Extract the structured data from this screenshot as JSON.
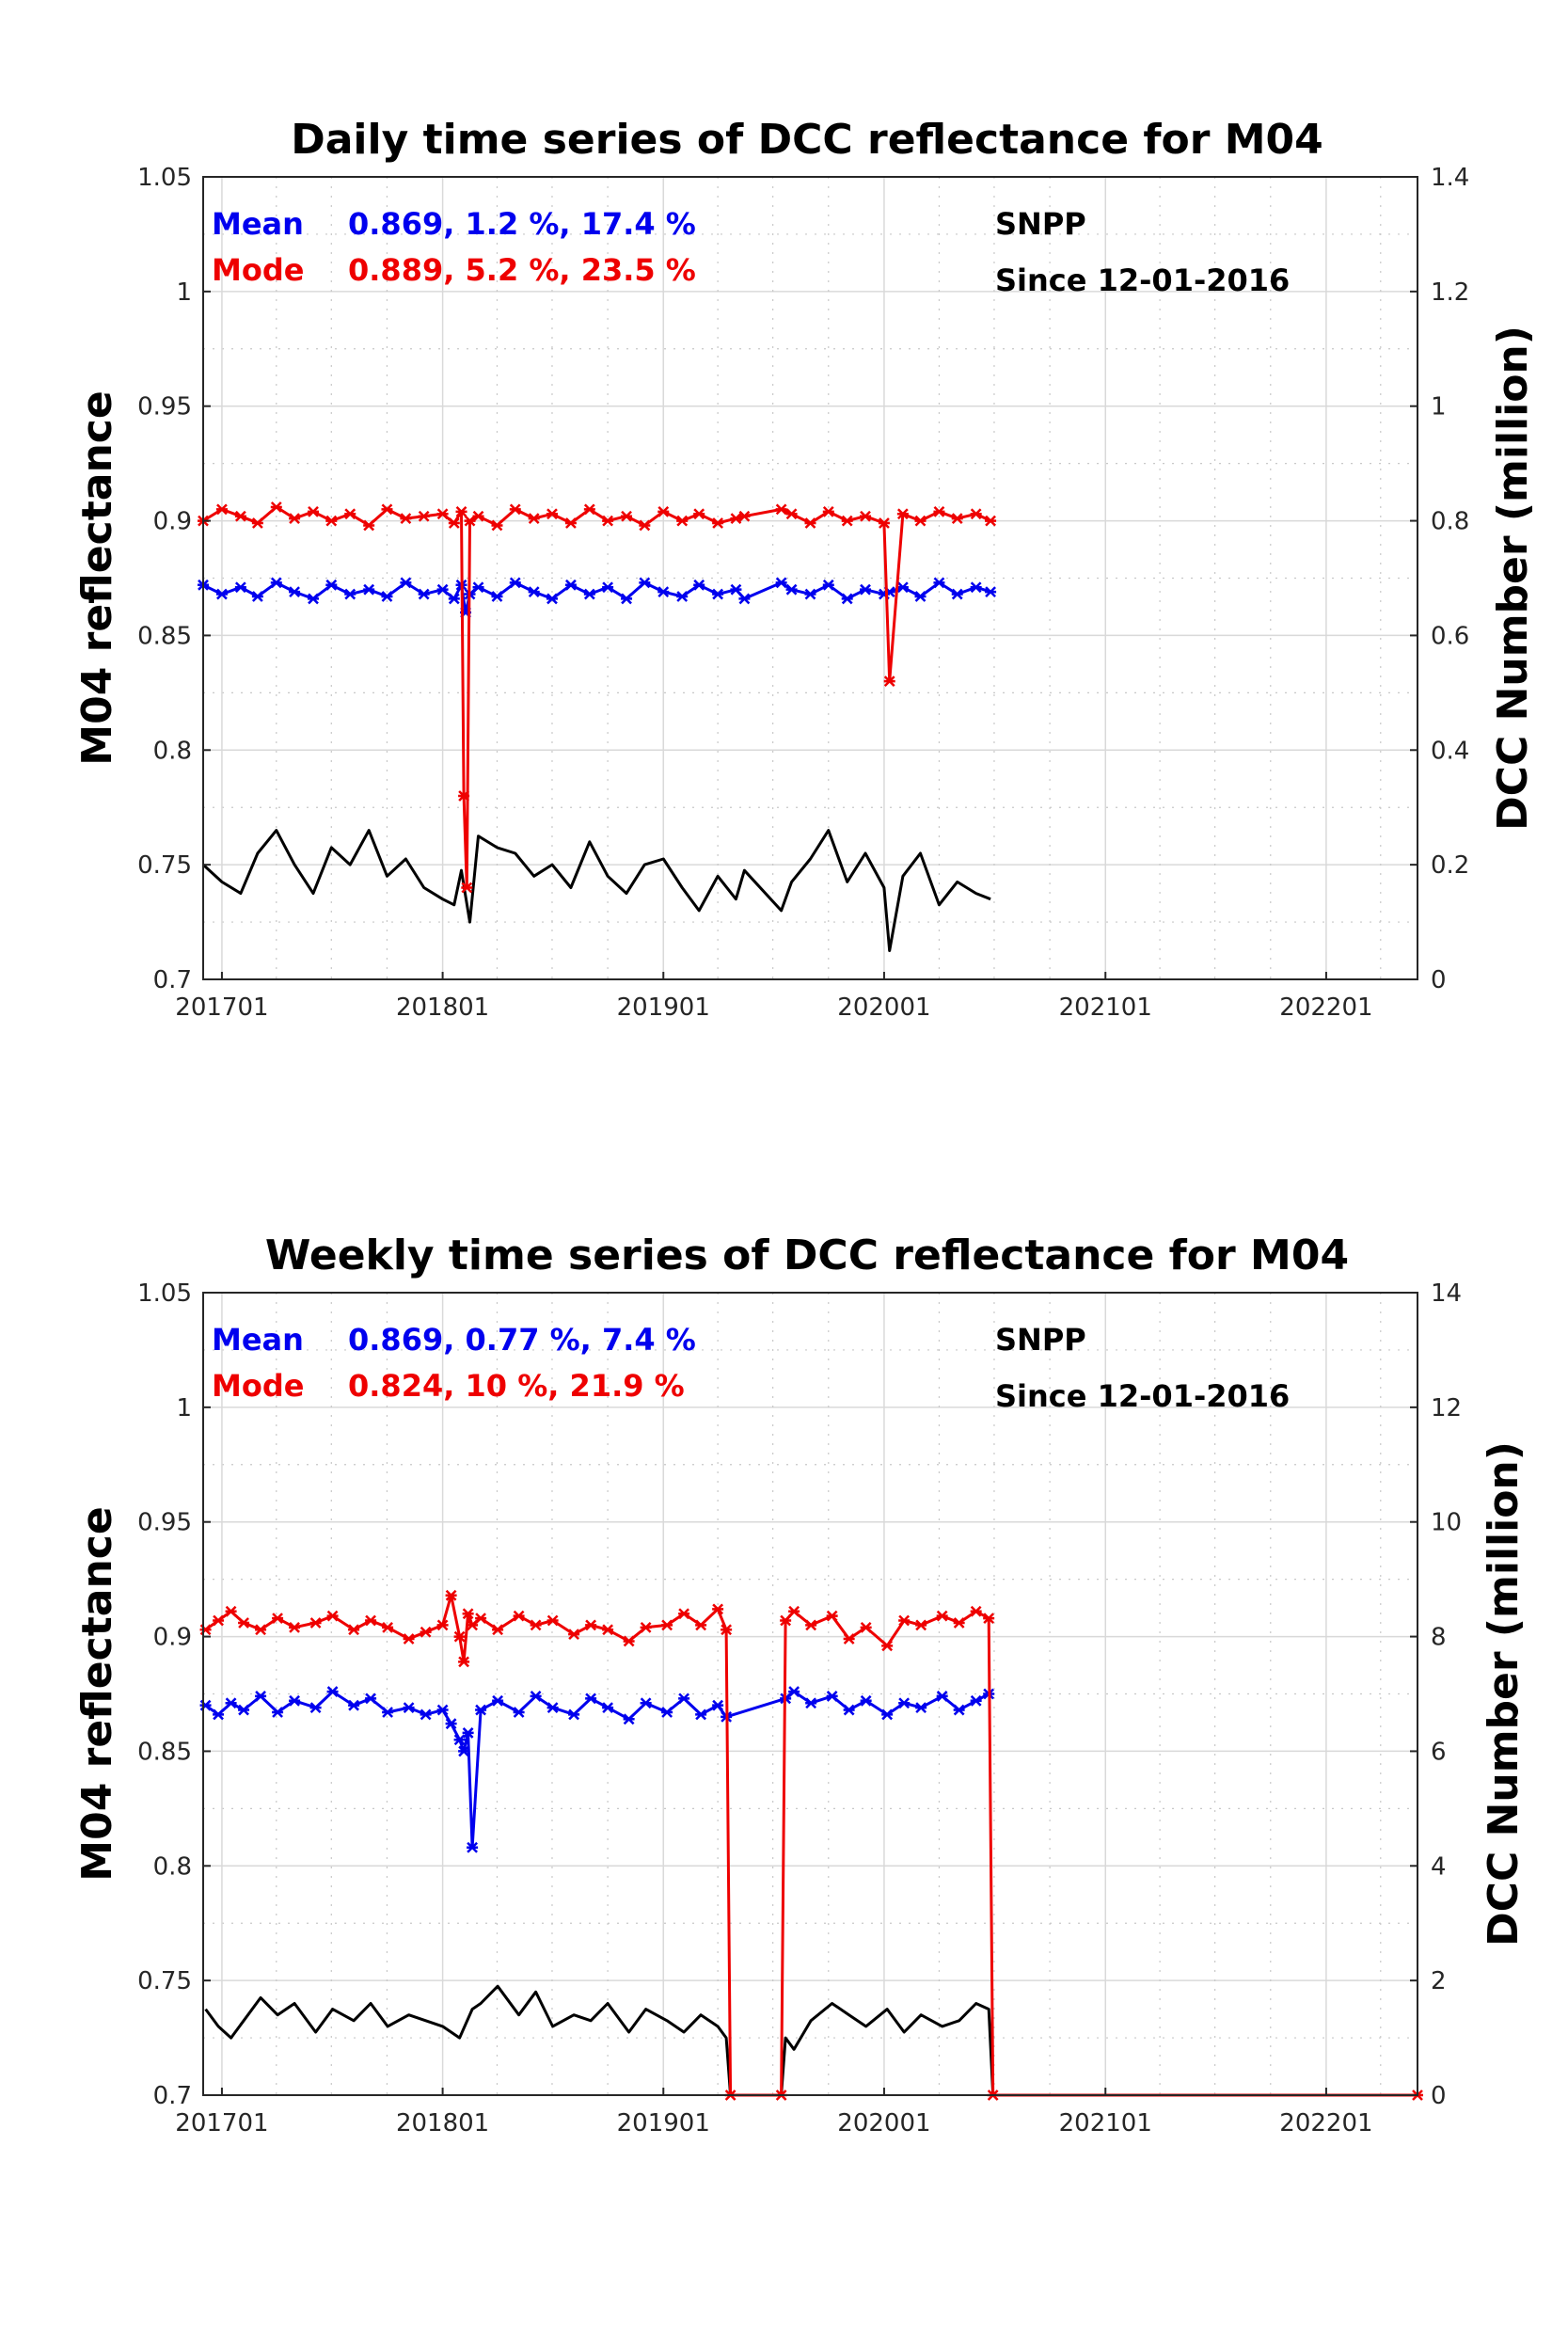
{
  "colors": {
    "mean": "#0000ee",
    "mode": "#ee0000",
    "count": "#000000",
    "text": "#000000"
  },
  "chart_data": [
    {
      "type": "line",
      "title": "Daily time series of DCC reflectance for M04",
      "ylabel": "M04 reflectance",
      "y2label": "DCC Number (million)",
      "ylim": [
        0.7,
        1.05
      ],
      "y2lim": [
        0,
        1.4
      ],
      "xlim": [
        "2016-12-01",
        "2022-06-01"
      ],
      "xticks": [
        "201701",
        "201801",
        "201901",
        "202001",
        "202101",
        "202201"
      ],
      "yticks": [
        "0.7",
        "0.75",
        "0.8",
        "0.85",
        "0.9",
        "0.95",
        "1",
        "1.05"
      ],
      "y2ticks": [
        "0",
        "0.2",
        "0.4",
        "0.6",
        "0.8",
        "1",
        "1.2",
        "1.4"
      ],
      "grid": true,
      "annotations": {
        "mean_label": "Mean",
        "mean_stats": "0.869, 1.2 %, 17.4 %",
        "mode_label": "Mode",
        "mode_stats": "0.889, 5.2 %, 23.5 %",
        "satellite": "SNPP",
        "since": "Since 12-01-2016"
      },
      "series": [
        {
          "name": "Mean",
          "axis": "left",
          "markers": true,
          "x": [
            "2016-12-01",
            "2017-01-01",
            "2017-02-01",
            "2017-03-01",
            "2017-04-01",
            "2017-05-01",
            "2017-06-01",
            "2017-07-01",
            "2017-08-01",
            "2017-09-01",
            "2017-10-01",
            "2017-11-01",
            "2017-12-01",
            "2018-01-01",
            "2018-01-20",
            "2018-02-01",
            "2018-02-08",
            "2018-02-15",
            "2018-03-01",
            "2018-04-01",
            "2018-05-01",
            "2018-06-01",
            "2018-07-01",
            "2018-08-01",
            "2018-09-01",
            "2018-10-01",
            "2018-11-01",
            "2018-12-01",
            "2019-01-01",
            "2019-02-01",
            "2019-03-01",
            "2019-04-01",
            "2019-05-01",
            "2019-05-15",
            "2019-07-15",
            "2019-08-01",
            "2019-09-01",
            "2019-10-01",
            "2019-11-01",
            "2019-12-01",
            "2020-01-01",
            "2020-01-10",
            "2020-02-01",
            "2020-03-01",
            "2020-04-01",
            "2020-05-01",
            "2020-06-01",
            "2020-06-25"
          ],
          "y": [
            0.872,
            0.868,
            0.871,
            0.867,
            0.873,
            0.869,
            0.866,
            0.872,
            0.868,
            0.87,
            0.867,
            0.873,
            0.868,
            0.87,
            0.866,
            0.872,
            0.86,
            0.868,
            0.871,
            0.867,
            0.873,
            0.869,
            0.866,
            0.872,
            0.868,
            0.871,
            0.866,
            0.873,
            0.869,
            0.867,
            0.872,
            0.868,
            0.87,
            0.866,
            0.873,
            0.87,
            0.868,
            0.872,
            0.866,
            0.87,
            0.868,
            0.869,
            0.871,
            0.867,
            0.873,
            0.868,
            0.871,
            0.869
          ]
        },
        {
          "name": "Mode",
          "axis": "left",
          "markers": true,
          "x": [
            "2016-12-01",
            "2017-01-01",
            "2017-02-01",
            "2017-03-01",
            "2017-04-01",
            "2017-05-01",
            "2017-06-01",
            "2017-07-01",
            "2017-08-01",
            "2017-09-01",
            "2017-10-01",
            "2017-11-01",
            "2017-12-01",
            "2018-01-01",
            "2018-01-20",
            "2018-02-01",
            "2018-02-05",
            "2018-02-10",
            "2018-02-15",
            "2018-03-01",
            "2018-04-01",
            "2018-05-01",
            "2018-06-01",
            "2018-07-01",
            "2018-08-01",
            "2018-09-01",
            "2018-10-01",
            "2018-11-01",
            "2018-12-01",
            "2019-01-01",
            "2019-02-01",
            "2019-03-01",
            "2019-04-01",
            "2019-05-01",
            "2019-05-15",
            "2019-07-15",
            "2019-08-01",
            "2019-09-01",
            "2019-10-01",
            "2019-11-01",
            "2019-12-01",
            "2020-01-01",
            "2020-01-10",
            "2020-02-01",
            "2020-03-01",
            "2020-04-01",
            "2020-05-01",
            "2020-06-01",
            "2020-06-25"
          ],
          "y": [
            0.9,
            0.905,
            0.902,
            0.899,
            0.906,
            0.901,
            0.904,
            0.9,
            0.903,
            0.898,
            0.905,
            0.901,
            0.902,
            0.903,
            0.899,
            0.904,
            0.78,
            0.74,
            0.9,
            0.902,
            0.898,
            0.905,
            0.901,
            0.903,
            0.899,
            0.905,
            0.9,
            0.902,
            0.898,
            0.904,
            0.9,
            0.903,
            0.899,
            0.901,
            0.902,
            0.905,
            0.903,
            0.899,
            0.904,
            0.9,
            0.902,
            0.899,
            0.83,
            0.903,
            0.9,
            0.904,
            0.901,
            0.903,
            0.9
          ]
        },
        {
          "name": "DCC Number",
          "axis": "right",
          "markers": false,
          "x": [
            "2016-12-01",
            "2017-01-01",
            "2017-02-01",
            "2017-03-01",
            "2017-04-01",
            "2017-05-01",
            "2017-06-01",
            "2017-07-01",
            "2017-08-01",
            "2017-09-01",
            "2017-10-01",
            "2017-11-01",
            "2017-12-01",
            "2018-01-01",
            "2018-01-20",
            "2018-02-01",
            "2018-02-15",
            "2018-03-01",
            "2018-04-01",
            "2018-05-01",
            "2018-06-01",
            "2018-07-01",
            "2018-08-01",
            "2018-09-01",
            "2018-10-01",
            "2018-11-01",
            "2018-12-01",
            "2019-01-01",
            "2019-02-01",
            "2019-03-01",
            "2019-04-01",
            "2019-05-01",
            "2019-05-15",
            "2019-07-15",
            "2019-08-01",
            "2019-09-01",
            "2019-10-01",
            "2019-11-01",
            "2019-12-01",
            "2020-01-01",
            "2020-01-10",
            "2020-02-01",
            "2020-03-01",
            "2020-04-01",
            "2020-05-01",
            "2020-06-01",
            "2020-06-25"
          ],
          "y": [
            0.2,
            0.17,
            0.15,
            0.22,
            0.26,
            0.2,
            0.15,
            0.23,
            0.2,
            0.26,
            0.18,
            0.21,
            0.16,
            0.14,
            0.13,
            0.19,
            0.1,
            0.25,
            0.23,
            0.22,
            0.18,
            0.2,
            0.16,
            0.24,
            0.18,
            0.15,
            0.2,
            0.21,
            0.16,
            0.12,
            0.18,
            0.14,
            0.19,
            0.12,
            0.17,
            0.21,
            0.26,
            0.17,
            0.22,
            0.16,
            0.05,
            0.18,
            0.22,
            0.13,
            0.17,
            0.15,
            0.14
          ]
        }
      ]
    },
    {
      "type": "line",
      "title": "Weekly time series of DCC reflectance for M04",
      "ylabel": "M04 reflectance",
      "y2label": "DCC Number (million)",
      "ylim": [
        0.7,
        1.05
      ],
      "y2lim": [
        0,
        14
      ],
      "xlim": [
        "2016-12-01",
        "2022-06-01"
      ],
      "xticks": [
        "201701",
        "201801",
        "201901",
        "202001",
        "202101",
        "202201"
      ],
      "yticks": [
        "0.7",
        "0.75",
        "0.8",
        "0.85",
        "0.9",
        "0.95",
        "1",
        "1.05"
      ],
      "y2ticks": [
        "0",
        "2",
        "4",
        "6",
        "8",
        "10",
        "12",
        "14"
      ],
      "grid": true,
      "annotations": {
        "mean_label": "Mean",
        "mean_stats": "0.869, 0.77 %, 7.4 %",
        "mode_label": "Mode",
        "mode_stats": "0.824, 10 %, 21.9 %",
        "satellite": "SNPP",
        "since": "Since 12-01-2016"
      },
      "series": [
        {
          "name": "Mean",
          "axis": "left",
          "markers": true,
          "x": [
            "2016-12-05",
            "2016-12-26",
            "2017-01-16",
            "2017-02-06",
            "2017-03-06",
            "2017-04-03",
            "2017-05-01",
            "2017-06-05",
            "2017-07-03",
            "2017-08-07",
            "2017-09-04",
            "2017-10-02",
            "2017-11-06",
            "2017-12-04",
            "2018-01-01",
            "2018-01-15",
            "2018-01-29",
            "2018-02-05",
            "2018-02-12",
            "2018-02-19",
            "2018-03-05",
            "2018-04-02",
            "2018-05-07",
            "2018-06-04",
            "2018-07-02",
            "2018-08-06",
            "2018-09-03",
            "2018-10-01",
            "2018-11-05",
            "2018-12-03",
            "2019-01-07",
            "2019-02-04",
            "2019-03-04",
            "2019-04-01",
            "2019-04-15",
            "2019-07-22",
            "2019-08-05",
            "2019-09-02",
            "2019-10-07",
            "2019-11-04",
            "2019-12-02",
            "2020-01-06",
            "2020-02-03",
            "2020-03-02",
            "2020-04-06",
            "2020-05-04",
            "2020-06-01",
            "2020-06-22"
          ],
          "y": [
            0.87,
            0.866,
            0.871,
            0.868,
            0.874,
            0.867,
            0.872,
            0.869,
            0.876,
            0.87,
            0.873,
            0.867,
            0.869,
            0.866,
            0.868,
            0.862,
            0.855,
            0.85,
            0.858,
            0.808,
            0.868,
            0.872,
            0.867,
            0.874,
            0.869,
            0.866,
            0.873,
            0.869,
            0.864,
            0.871,
            0.867,
            0.873,
            0.866,
            0.87,
            0.865,
            0.873,
            0.876,
            0.871,
            0.874,
            0.868,
            0.872,
            0.866,
            0.871,
            0.869,
            0.874,
            0.868,
            0.872,
            0.875
          ]
        },
        {
          "name": "Mode",
          "axis": "left",
          "markers": true,
          "x": [
            "2016-12-05",
            "2016-12-26",
            "2017-01-16",
            "2017-02-06",
            "2017-03-06",
            "2017-04-03",
            "2017-05-01",
            "2017-06-05",
            "2017-07-03",
            "2017-08-07",
            "2017-09-04",
            "2017-10-02",
            "2017-11-06",
            "2017-12-04",
            "2018-01-01",
            "2018-01-15",
            "2018-01-29",
            "2018-02-05",
            "2018-02-12",
            "2018-02-19",
            "2018-03-05",
            "2018-04-02",
            "2018-05-07",
            "2018-06-04",
            "2018-07-02",
            "2018-08-06",
            "2018-09-03",
            "2018-10-01",
            "2018-11-05",
            "2018-12-03",
            "2019-01-07",
            "2019-02-04",
            "2019-03-04",
            "2019-04-01",
            "2019-04-15",
            "2019-04-22",
            "2019-07-15",
            "2019-07-22",
            "2019-08-05",
            "2019-09-02",
            "2019-10-07",
            "2019-11-04",
            "2019-12-02",
            "2020-01-06",
            "2020-02-03",
            "2020-03-02",
            "2020-04-06",
            "2020-05-04",
            "2020-06-01",
            "2020-06-22",
            "2020-06-29",
            "2022-06-01"
          ],
          "y": [
            0.903,
            0.907,
            0.911,
            0.906,
            0.903,
            0.908,
            0.904,
            0.906,
            0.909,
            0.903,
            0.907,
            0.904,
            0.899,
            0.902,
            0.905,
            0.918,
            0.9,
            0.889,
            0.91,
            0.905,
            0.908,
            0.903,
            0.909,
            0.905,
            0.907,
            0.901,
            0.905,
            0.903,
            0.898,
            0.904,
            0.905,
            0.91,
            0.905,
            0.912,
            0.903,
            0.7,
            0.7,
            0.907,
            0.911,
            0.905,
            0.909,
            0.899,
            0.904,
            0.896,
            0.907,
            0.905,
            0.909,
            0.906,
            0.911,
            0.908,
            0.7,
            0.7
          ]
        },
        {
          "name": "DCC Number",
          "axis": "right",
          "markers": false,
          "x": [
            "2016-12-05",
            "2016-12-26",
            "2017-01-16",
            "2017-02-06",
            "2017-03-06",
            "2017-04-03",
            "2017-05-01",
            "2017-06-05",
            "2017-07-03",
            "2017-08-07",
            "2017-09-04",
            "2017-10-02",
            "2017-11-06",
            "2017-12-04",
            "2018-01-01",
            "2018-01-29",
            "2018-02-19",
            "2018-03-05",
            "2018-04-02",
            "2018-05-07",
            "2018-06-04",
            "2018-07-02",
            "2018-08-06",
            "2018-09-03",
            "2018-10-01",
            "2018-11-05",
            "2018-12-03",
            "2019-01-07",
            "2019-02-04",
            "2019-03-04",
            "2019-04-01",
            "2019-04-15",
            "2019-04-22",
            "2019-07-15",
            "2019-07-22",
            "2019-08-05",
            "2019-09-02",
            "2019-10-07",
            "2019-11-04",
            "2019-12-02",
            "2020-01-06",
            "2020-02-03",
            "2020-03-02",
            "2020-04-06",
            "2020-05-04",
            "2020-06-01",
            "2020-06-22",
            "2020-06-29",
            "2022-06-01"
          ],
          "y": [
            1.5,
            1.2,
            1.0,
            1.3,
            1.7,
            1.4,
            1.6,
            1.1,
            1.5,
            1.3,
            1.6,
            1.2,
            1.4,
            1.3,
            1.2,
            1.0,
            1.5,
            1.6,
            1.9,
            1.4,
            1.8,
            1.2,
            1.4,
            1.3,
            1.6,
            1.1,
            1.5,
            1.3,
            1.1,
            1.4,
            1.2,
            1.0,
            0,
            0,
            1.0,
            0.8,
            1.3,
            1.6,
            1.4,
            1.2,
            1.5,
            1.1,
            1.4,
            1.2,
            1.3,
            1.6,
            1.5,
            0,
            0
          ]
        }
      ]
    }
  ]
}
